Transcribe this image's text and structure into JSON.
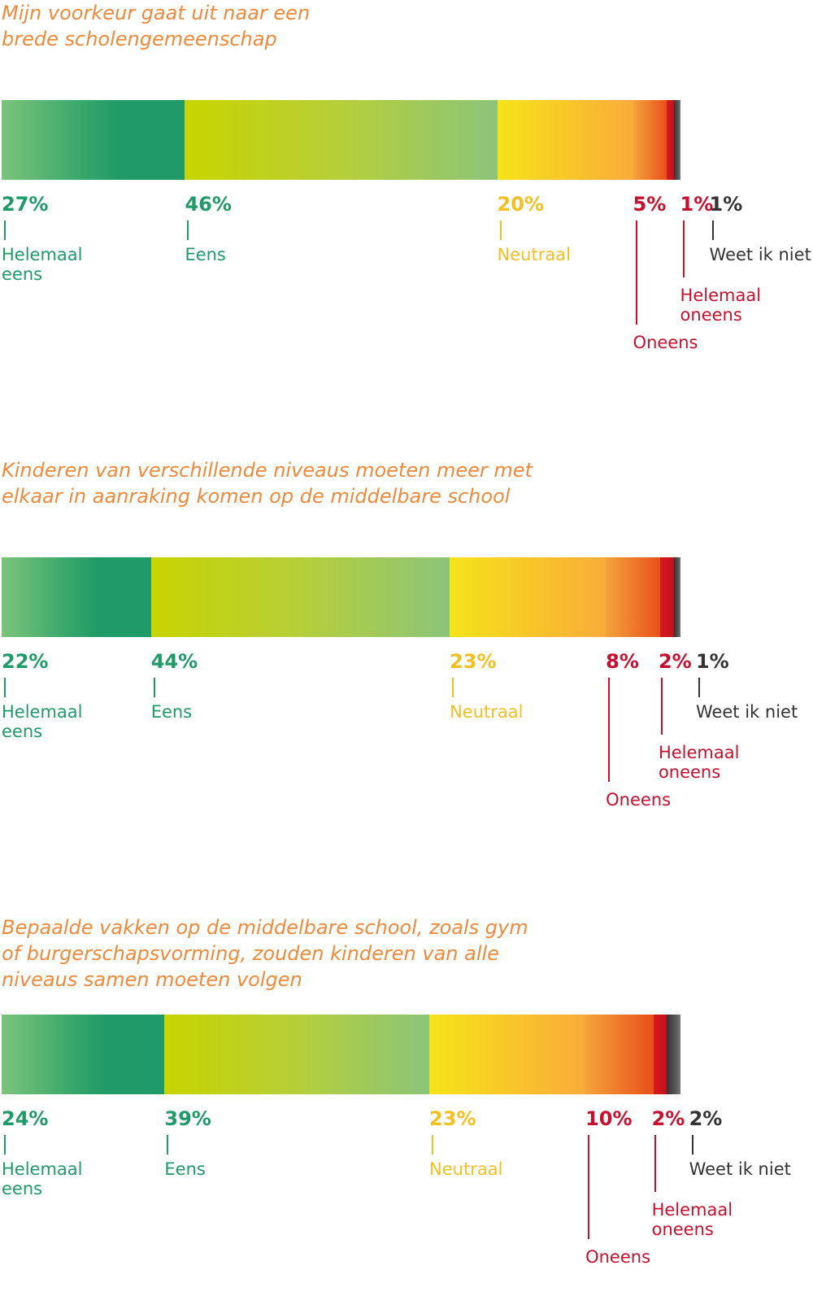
{
  "colors": {
    "title": "#f0893a",
    "helemaal_eens": "#1f9a68",
    "eens": "#1f9a68",
    "neutraal": "#f4c021",
    "oneens": "#c8102e",
    "helemaal_oneens": "#c8102e",
    "weet_ik_niet": "#333333"
  },
  "chart_data": [
    {
      "type": "bar",
      "title": "Mijn voorkeur gaat uit naar een\nbrede scholengemeenschap",
      "categories": [
        "Helemaal\neens",
        "Eens",
        "Neutraal",
        "Oneens",
        "Helemaal\noneens",
        "Weet ik niet"
      ],
      "values": [
        27,
        46,
        20,
        5,
        1,
        1
      ],
      "value_labels": [
        "27%",
        "46%",
        "20%",
        "5%",
        "1%",
        "1%"
      ]
    },
    {
      "type": "bar",
      "title": "Kinderen van verschillende niveaus moeten meer met\nelkaar in aanraking komen op de middelbare school",
      "categories": [
        "Helemaal\neens",
        "Eens",
        "Neutraal",
        "Oneens",
        "Helemaal\noneens",
        "Weet ik niet"
      ],
      "values": [
        22,
        44,
        23,
        8,
        2,
        1
      ],
      "value_labels": [
        "22%",
        "44%",
        "23%",
        "8%",
        "2%",
        "1%"
      ]
    },
    {
      "type": "bar",
      "title": "Bepaalde vakken op de middelbare school, zoals gym\nof burgerschapsvorming, zouden kinderen van alle\nniveaus samen moeten volgen",
      "categories": [
        "Helemaal\neens",
        "Eens",
        "Neutraal",
        "Oneens",
        "Helemaal\noneens",
        "Weet ik niet"
      ],
      "values": [
        24,
        39,
        23,
        10,
        2,
        2
      ],
      "value_labels": [
        "24%",
        "39%",
        "23%",
        "10%",
        "2%",
        "2%"
      ]
    }
  ]
}
